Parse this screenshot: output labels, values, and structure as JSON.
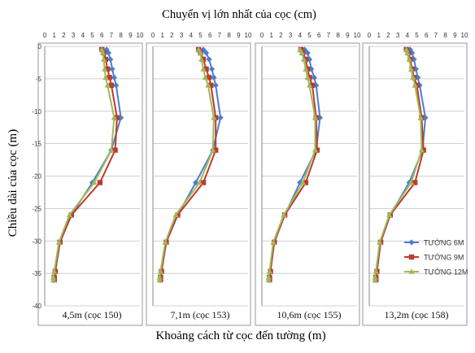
{
  "figure": {
    "top_title": "Chuyển vị lớn nhất của cọc (cm)",
    "y_label": "Chiều dài của cọc (m)",
    "bottom_title": "Khoảng cách từ cọc đến tường (m)"
  },
  "legend": {
    "items": [
      "TƯỜNG 6M",
      "TƯỜNG 9M",
      "TƯỜNG 12M"
    ]
  },
  "colors": {
    "wall_6m": "#4a7fd0",
    "wall_9m": "#c0392b",
    "wall_12m": "#9bbb59",
    "grid": "#c0c0c0",
    "panel_border": "#9a9a9a"
  },
  "chart_data": [
    {
      "type": "line",
      "panel_caption": "4,5m (cọc 150)",
      "xlim": [
        0,
        10
      ],
      "ylim": [
        -40,
        0
      ],
      "x_ticks": [
        0,
        1,
        2,
        3,
        4,
        5,
        6,
        7,
        8,
        9,
        10
      ],
      "y_ticks": [
        0,
        -5,
        -10,
        -15,
        -20,
        -25,
        -30,
        -35,
        -40
      ],
      "series": [
        {
          "name": "TƯỜNG 6M",
          "points": [
            [
              6.5,
              -0.5
            ],
            [
              6.7,
              -1
            ],
            [
              6.9,
              -2
            ],
            [
              7.1,
              -3.5
            ],
            [
              7.3,
              -4.8
            ],
            [
              7.5,
              -6
            ],
            [
              8.0,
              -11
            ],
            [
              7.0,
              -16
            ],
            [
              5.0,
              -21
            ],
            [
              2.8,
              -26
            ],
            [
              1.6,
              -30.2
            ],
            [
              1.1,
              -34.7
            ],
            [
              1.0,
              -35.6
            ],
            [
              1.0,
              -36
            ]
          ]
        },
        {
          "name": "TƯỜNG 9M",
          "points": [
            [
              6.0,
              -0.5
            ],
            [
              6.2,
              -1
            ],
            [
              6.4,
              -2
            ],
            [
              6.6,
              -3.5
            ],
            [
              6.8,
              -4.8
            ],
            [
              7.0,
              -6
            ],
            [
              7.6,
              -11
            ],
            [
              7.4,
              -16
            ],
            [
              5.8,
              -21
            ],
            [
              2.8,
              -26
            ],
            [
              1.6,
              -30.2
            ],
            [
              1.1,
              -34.7
            ],
            [
              1.0,
              -35.6
            ],
            [
              1.0,
              -36
            ]
          ]
        },
        {
          "name": "TƯỜNG 12M",
          "points": [
            [
              6.0,
              -0.5
            ],
            [
              6.1,
              -1
            ],
            [
              6.2,
              -2
            ],
            [
              6.3,
              -3.5
            ],
            [
              6.4,
              -4.8
            ],
            [
              6.6,
              -6
            ],
            [
              7.3,
              -11
            ],
            [
              7.0,
              -16
            ],
            [
              5.2,
              -21
            ],
            [
              2.6,
              -26
            ],
            [
              1.5,
              -30.2
            ],
            [
              1.0,
              -34.7
            ],
            [
              0.9,
              -35.6
            ],
            [
              0.9,
              -36
            ]
          ]
        }
      ]
    },
    {
      "type": "line",
      "panel_caption": "7,1m (cọc 153)",
      "xlim": [
        0,
        10
      ],
      "ylim": [
        -40,
        0
      ],
      "x_ticks": [
        0,
        1,
        2,
        3,
        4,
        5,
        6,
        7,
        8,
        9,
        10
      ],
      "y_ticks": [
        0,
        -5,
        -10,
        -15,
        -20,
        -25,
        -30,
        -35,
        -40
      ],
      "series": [
        {
          "name": "TƯỜNG 6M",
          "points": [
            [
              5.3,
              -0.5
            ],
            [
              5.6,
              -1
            ],
            [
              5.9,
              -2
            ],
            [
              6.2,
              -3.5
            ],
            [
              6.4,
              -4.8
            ],
            [
              6.6,
              -6
            ],
            [
              7.1,
              -11
            ],
            [
              6.3,
              -16
            ],
            [
              4.5,
              -21
            ],
            [
              2.6,
              -26
            ],
            [
              1.4,
              -30.2
            ],
            [
              0.9,
              -34.7
            ],
            [
              0.8,
              -35.6
            ],
            [
              0.8,
              -36
            ]
          ]
        },
        {
          "name": "TƯỜNG 9M",
          "points": [
            [
              4.8,
              -0.5
            ],
            [
              5.0,
              -1
            ],
            [
              5.3,
              -2
            ],
            [
              5.6,
              -3.5
            ],
            [
              5.9,
              -4.8
            ],
            [
              6.1,
              -6
            ],
            [
              6.6,
              -11
            ],
            [
              6.6,
              -16
            ],
            [
              5.3,
              -21
            ],
            [
              2.6,
              -26
            ],
            [
              1.4,
              -30.2
            ],
            [
              0.9,
              -34.7
            ],
            [
              0.8,
              -35.6
            ],
            [
              0.8,
              -36
            ]
          ]
        },
        {
          "name": "TƯỜNG 12M",
          "points": [
            [
              4.8,
              -0.5
            ],
            [
              5.0,
              -1
            ],
            [
              5.1,
              -2
            ],
            [
              5.3,
              -3.5
            ],
            [
              5.5,
              -4.8
            ],
            [
              5.8,
              -6
            ],
            [
              6.4,
              -11
            ],
            [
              6.3,
              -16
            ],
            [
              4.9,
              -21
            ],
            [
              2.4,
              -26
            ],
            [
              1.3,
              -30.2
            ],
            [
              0.8,
              -34.7
            ],
            [
              0.7,
              -35.6
            ],
            [
              0.7,
              -36
            ]
          ]
        }
      ]
    },
    {
      "type": "line",
      "panel_caption": "10,6m  (cọc 155)",
      "xlim": [
        0,
        10
      ],
      "ylim": [
        -40,
        0
      ],
      "x_ticks": [
        0,
        1,
        2,
        3,
        4,
        5,
        6,
        7,
        8,
        9,
        10
      ],
      "y_ticks": [
        0,
        -5,
        -10,
        -15,
        -20,
        -25,
        -30,
        -35,
        -40
      ],
      "series": [
        {
          "name": "TƯỜNG 6M",
          "points": [
            [
              4.5,
              -0.5
            ],
            [
              4.8,
              -1
            ],
            [
              5.0,
              -2
            ],
            [
              5.2,
              -3.5
            ],
            [
              5.5,
              -4.8
            ],
            [
              5.7,
              -6
            ],
            [
              6.1,
              -11
            ],
            [
              5.7,
              -16
            ],
            [
              4.0,
              -21
            ],
            [
              2.4,
              -26
            ],
            [
              1.3,
              -30.2
            ],
            [
              0.9,
              -34.7
            ],
            [
              0.8,
              -35.6
            ],
            [
              0.8,
              -36
            ]
          ]
        },
        {
          "name": "TƯỜNG 9M",
          "points": [
            [
              4.1,
              -0.5
            ],
            [
              4.3,
              -1
            ],
            [
              4.6,
              -2
            ],
            [
              4.8,
              -3.5
            ],
            [
              5.0,
              -4.8
            ],
            [
              5.3,
              -6
            ],
            [
              5.7,
              -11
            ],
            [
              5.8,
              -16
            ],
            [
              4.6,
              -21
            ],
            [
              2.4,
              -26
            ],
            [
              1.3,
              -30.2
            ],
            [
              0.9,
              -34.7
            ],
            [
              0.8,
              -35.6
            ],
            [
              0.8,
              -36
            ]
          ]
        },
        {
          "name": "TƯỜNG 12M",
          "points": [
            [
              4.0,
              -0.5
            ],
            [
              4.2,
              -1
            ],
            [
              4.4,
              -2
            ],
            [
              4.6,
              -3.5
            ],
            [
              4.8,
              -4.8
            ],
            [
              5.0,
              -6
            ],
            [
              5.6,
              -11
            ],
            [
              5.6,
              -16
            ],
            [
              4.3,
              -21
            ],
            [
              2.3,
              -26
            ],
            [
              1.2,
              -30.2
            ],
            [
              0.8,
              -34.7
            ],
            [
              0.7,
              -35.6
            ],
            [
              0.7,
              -36
            ]
          ]
        }
      ]
    },
    {
      "type": "line",
      "panel_caption": "13,2m (cọc 158)",
      "xlim": [
        0,
        10
      ],
      "ylim": [
        -40,
        0
      ],
      "x_ticks": [
        0,
        1,
        2,
        3,
        4,
        5,
        6,
        7,
        8,
        9,
        10
      ],
      "y_ticks": [
        0,
        -5,
        -10,
        -15,
        -20,
        -25,
        -30,
        -35,
        -40
      ],
      "series": [
        {
          "name": "TƯỜNG 6M",
          "points": [
            [
              4.3,
              -0.5
            ],
            [
              4.5,
              -1
            ],
            [
              4.7,
              -2
            ],
            [
              4.9,
              -3.5
            ],
            [
              5.1,
              -4.8
            ],
            [
              5.3,
              -6
            ],
            [
              5.9,
              -11
            ],
            [
              5.6,
              -16
            ],
            [
              4.2,
              -21
            ],
            [
              2.2,
              -26
            ],
            [
              1.2,
              -30.2
            ],
            [
              0.8,
              -34.7
            ],
            [
              0.7,
              -35.6
            ],
            [
              0.7,
              -36
            ]
          ]
        },
        {
          "name": "TƯỜNG 9M",
          "points": [
            [
              3.9,
              -0.5
            ],
            [
              4.1,
              -1
            ],
            [
              4.3,
              -2
            ],
            [
              4.5,
              -3.5
            ],
            [
              4.7,
              -4.8
            ],
            [
              5.0,
              -6
            ],
            [
              5.5,
              -11
            ],
            [
              5.7,
              -16
            ],
            [
              4.8,
              -21
            ],
            [
              2.2,
              -26
            ],
            [
              1.2,
              -30.2
            ],
            [
              0.8,
              -34.7
            ],
            [
              0.7,
              -35.6
            ],
            [
              0.7,
              -36
            ]
          ]
        },
        {
          "name": "TƯỜNG 12M",
          "points": [
            [
              3.9,
              -0.5
            ],
            [
              4.0,
              -1
            ],
            [
              4.2,
              -2
            ],
            [
              4.4,
              -3.5
            ],
            [
              4.6,
              -4.8
            ],
            [
              4.8,
              -6
            ],
            [
              5.4,
              -11
            ],
            [
              5.5,
              -16
            ],
            [
              4.4,
              -21
            ],
            [
              2.1,
              -26
            ],
            [
              1.1,
              -30.2
            ],
            [
              0.7,
              -34.7
            ],
            [
              0.6,
              -35.6
            ],
            [
              0.6,
              -36
            ]
          ]
        }
      ]
    }
  ]
}
